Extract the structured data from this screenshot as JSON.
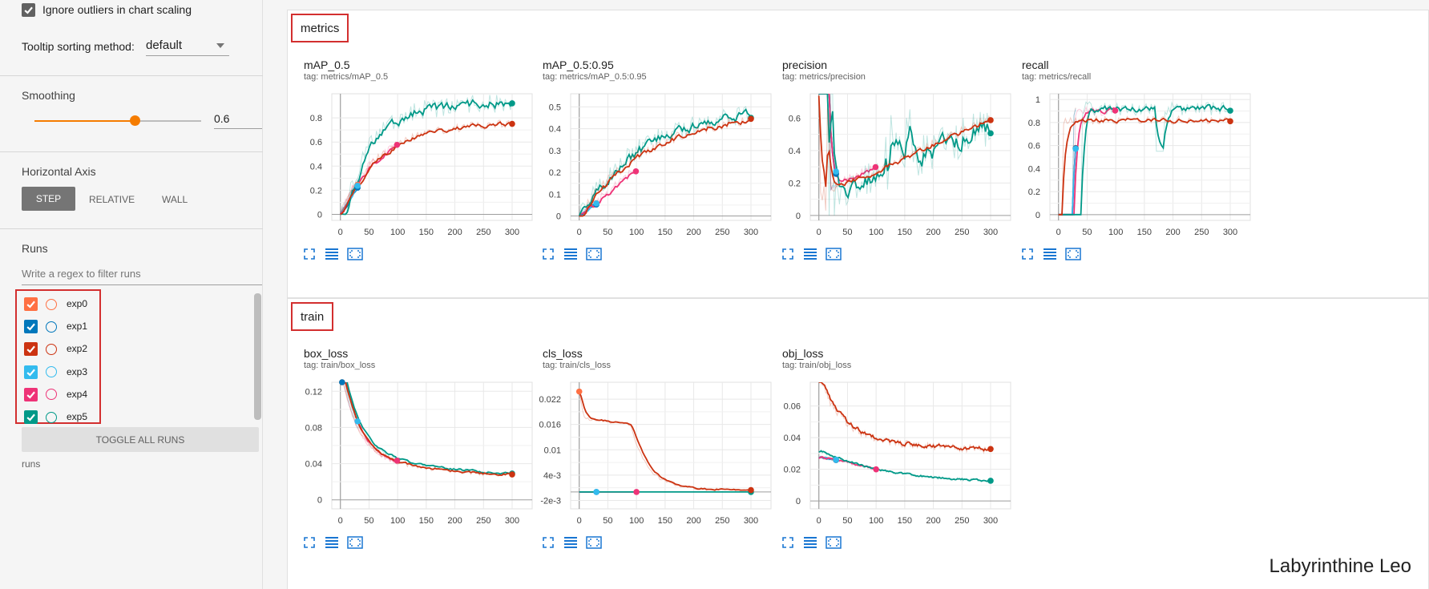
{
  "sidebar": {
    "ignore_outliers_label": "Ignore outliers in chart scaling",
    "tooltip_label": "Tooltip sorting method:",
    "tooltip_value": "default",
    "smoothing_title": "Smoothing",
    "smoothing_value": "0.6",
    "smoothing_fraction": 0.6,
    "haxis_title": "Horizontal Axis",
    "haxis_options": [
      "STEP",
      "RELATIVE",
      "WALL"
    ],
    "haxis_selected": "STEP",
    "runs_title": "Runs",
    "runs_filter_placeholder": "Write a regex to filter runs",
    "runs": [
      {
        "name": "exp0",
        "color": "#ff7043"
      },
      {
        "name": "exp1",
        "color": "#0077bb"
      },
      {
        "name": "exp2",
        "color": "#cc3311"
      },
      {
        "name": "exp3",
        "color": "#33bbee"
      },
      {
        "name": "exp4",
        "color": "#ee3377"
      },
      {
        "name": "exp5",
        "color": "#009988"
      }
    ],
    "toggle_all_label": "TOGGLE ALL RUNS",
    "runs_footer": "runs"
  },
  "groups": [
    {
      "name": "metrics",
      "cards": [
        {
          "title": "mAP_0.5",
          "tag": "tag: metrics/mAP_0.5",
          "ymin": -0.05,
          "ymax": 1.0,
          "yticks": [
            0,
            0.2,
            0.4,
            0.6,
            0.8
          ],
          "ytick_labels": [
            "0",
            "0.2",
            "0.4",
            "0.6",
            "0.8"
          ],
          "kind": "map"
        },
        {
          "title": "mAP_0.5:0.95",
          "tag": "tag: metrics/mAP_0.5:0.95",
          "ymin": -0.02,
          "ymax": 0.56,
          "yticks": [
            0,
            0.1,
            0.2,
            0.3,
            0.4,
            0.5
          ],
          "ytick_labels": [
            "0",
            "0.1",
            "0.2",
            "0.3",
            "0.4",
            "0.5"
          ],
          "kind": "map95"
        },
        {
          "title": "precision",
          "tag": "tag: metrics/precision",
          "ymin": -0.03,
          "ymax": 0.75,
          "yticks": [
            0,
            0.2,
            0.4,
            0.6
          ],
          "ytick_labels": [
            "0",
            "0.2",
            "0.4",
            "0.6"
          ],
          "kind": "precision"
        },
        {
          "title": "recall",
          "tag": "tag: metrics/recall",
          "ymin": -0.05,
          "ymax": 1.05,
          "yticks": [
            0,
            0.2,
            0.4,
            0.6,
            0.8,
            1.0
          ],
          "ytick_labels": [
            "0",
            "0.2",
            "0.4",
            "0.6",
            "0.8",
            "1"
          ],
          "kind": "recall"
        }
      ]
    },
    {
      "name": "train",
      "cards": [
        {
          "title": "box_loss",
          "tag": "tag: train/box_loss",
          "ymin": -0.01,
          "ymax": 0.13,
          "yticks": [
            0,
            0.04,
            0.08,
            0.12
          ],
          "ytick_labels": [
            "0",
            "0.04",
            "0.08",
            "0.12"
          ],
          "kind": "box"
        },
        {
          "title": "cls_loss",
          "tag": "tag: train/cls_loss",
          "ymin": -0.004,
          "ymax": 0.026,
          "yticks": [
            -0.002,
            0.004,
            0.01,
            0.016,
            0.022
          ],
          "ytick_labels": [
            "-2e-3",
            "4e-3",
            "0.01",
            "0.016",
            "0.022"
          ],
          "kind": "cls"
        },
        {
          "title": "obj_loss",
          "tag": "tag: train/obj_loss",
          "ymin": -0.005,
          "ymax": 0.075,
          "yticks": [
            0,
            0.02,
            0.04,
            0.06
          ],
          "ytick_labels": [
            "0",
            "0.02",
            "0.04",
            "0.06"
          ],
          "kind": "obj"
        }
      ]
    }
  ],
  "xticks": [
    0,
    50,
    100,
    150,
    200,
    250,
    300
  ],
  "xtick_labels": [
    "0",
    "50",
    "100",
    "150",
    "200",
    "250",
    "300"
  ],
  "chart_data": {
    "type": "line",
    "xmin": -15,
    "xmax": 335,
    "series_note_names": [
      "exp0",
      "exp1",
      "exp2",
      "exp3",
      "exp4",
      "exp5"
    ]
  },
  "watermark": "Labyrinthine Leo"
}
